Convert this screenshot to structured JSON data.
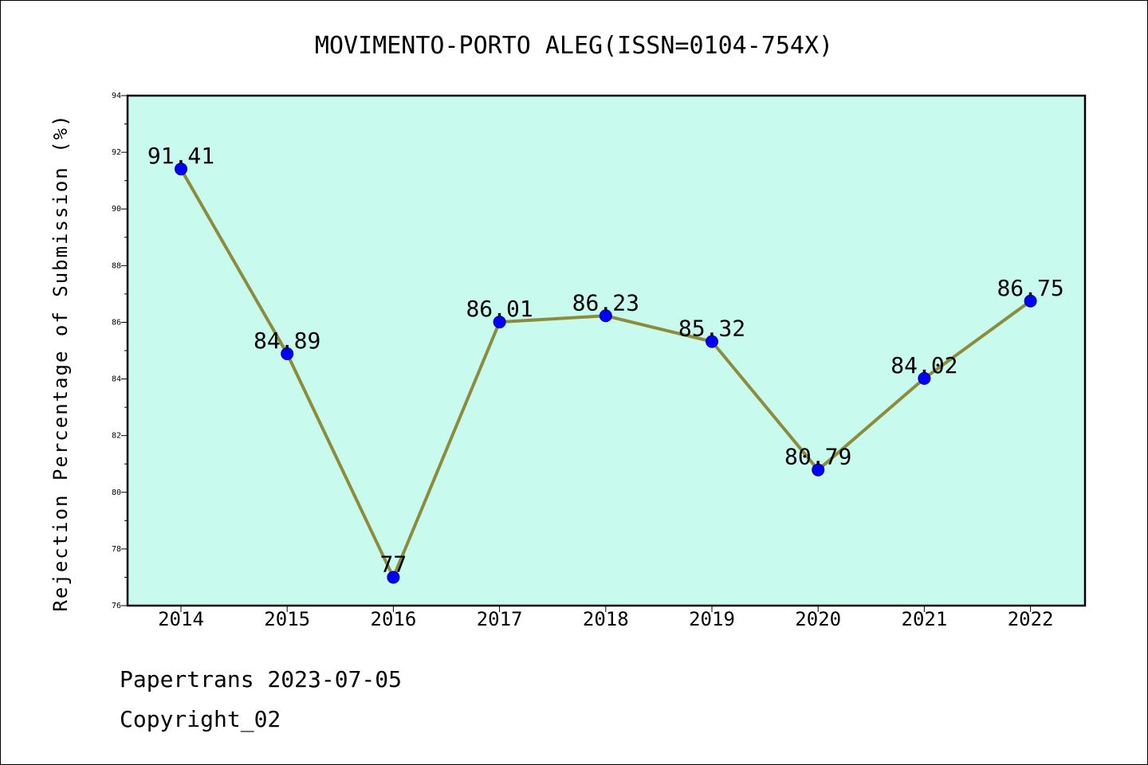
{
  "chart_data": {
    "type": "line",
    "title": "MOVIMENTO-PORTO ALEG(ISSN=0104-754X)",
    "xlabel": "",
    "ylabel": "Rejection Percentage of Submission (%)",
    "categories": [
      "2014",
      "2015",
      "2016",
      "2017",
      "2018",
      "2019",
      "2020",
      "2021",
      "2022"
    ],
    "series": [
      {
        "values": [
          91.41,
          84.89,
          77,
          86.01,
          86.23,
          85.32,
          80.79,
          84.02,
          86.75
        ],
        "labels": [
          "91.41",
          "84.89",
          "77",
          "86.01",
          "86.23",
          "85.32",
          "80.79",
          "84.02",
          "86.75"
        ]
      }
    ],
    "ylim": [
      76,
      94
    ],
    "yticks": [
      76,
      78,
      80,
      82,
      84,
      86,
      88,
      90,
      92,
      94
    ],
    "grid": false,
    "colors": {
      "plot_background": "#c8fbee",
      "line": "#8c8c3c",
      "marker": "#0000ff"
    }
  },
  "footer": {
    "source": "Papertrans 2023-07-05",
    "copyright": "Copyright_02"
  }
}
